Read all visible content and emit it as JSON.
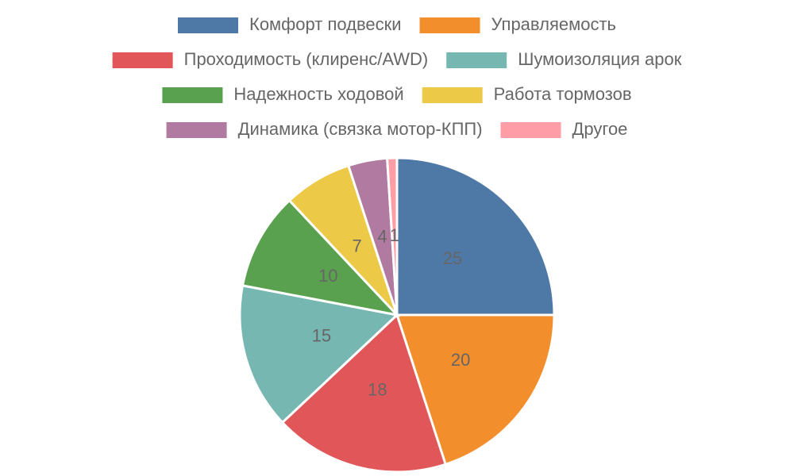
{
  "chart_data": {
    "type": "pie",
    "categories": [
      "Комфорт подвески",
      "Управляемость",
      "Проходимость (клиренс/AWD)",
      "Шумоизоляция арок",
      "Надежность ходовой",
      "Работа тормозов",
      "Динамика (связка мотор-КПП)",
      "Другое"
    ],
    "values": [
      25,
      20,
      18,
      15,
      10,
      7,
      4,
      1
    ],
    "colors": [
      "#4e79a7",
      "#f28e2b",
      "#e15759",
      "#76b7b2",
      "#59a14f",
      "#edc948",
      "#b07aa1",
      "#ff9da7"
    ],
    "legend": "top"
  }
}
